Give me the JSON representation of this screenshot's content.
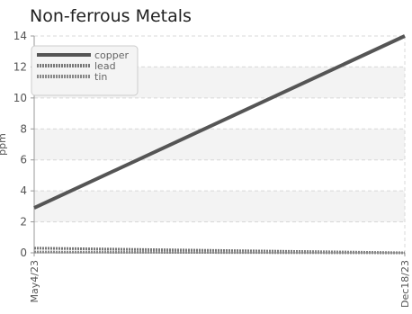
{
  "chart_data": {
    "type": "line",
    "title": "Non-ferrous Metals",
    "xlabel": "",
    "ylabel": "ppm",
    "x": [
      "May4/23",
      "Dec18/23"
    ],
    "xlim": [
      "May4/23",
      "Dec18/23"
    ],
    "ylim": [
      0,
      14
    ],
    "yticks": [
      0,
      2,
      4,
      6,
      8,
      10,
      12,
      14
    ],
    "grid": true,
    "legend_position": "top-left",
    "series": [
      {
        "name": "copper",
        "values": [
          2.9,
          14.0
        ],
        "color": "#555555",
        "style": "solid"
      },
      {
        "name": "lead",
        "values": [
          0.3,
          0.0
        ],
        "color": "#777777",
        "style": "dotted"
      },
      {
        "name": "tin",
        "values": [
          0.05,
          0.0
        ],
        "color": "#888888",
        "style": "dotted"
      }
    ]
  }
}
